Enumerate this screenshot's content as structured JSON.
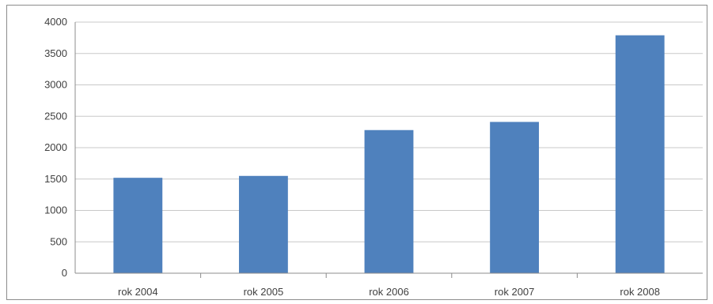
{
  "chart_data": {
    "type": "bar",
    "title": "",
    "xlabel": "",
    "ylabel": "",
    "categories": [
      "rok 2004",
      "rok 2005",
      "rok 2006",
      "rok 2007",
      "rok 2008"
    ],
    "values": [
      1520,
      1550,
      2280,
      2410,
      3790
    ],
    "ylim": [
      0,
      4000
    ],
    "yticks": [
      0,
      500,
      1000,
      1500,
      2000,
      2500,
      3000,
      3500,
      4000
    ],
    "grid": true,
    "legend": "none",
    "colors": {
      "bar": "#4f81bd",
      "grid": "#c8c8c8",
      "axis": "#8c8c8c"
    }
  }
}
